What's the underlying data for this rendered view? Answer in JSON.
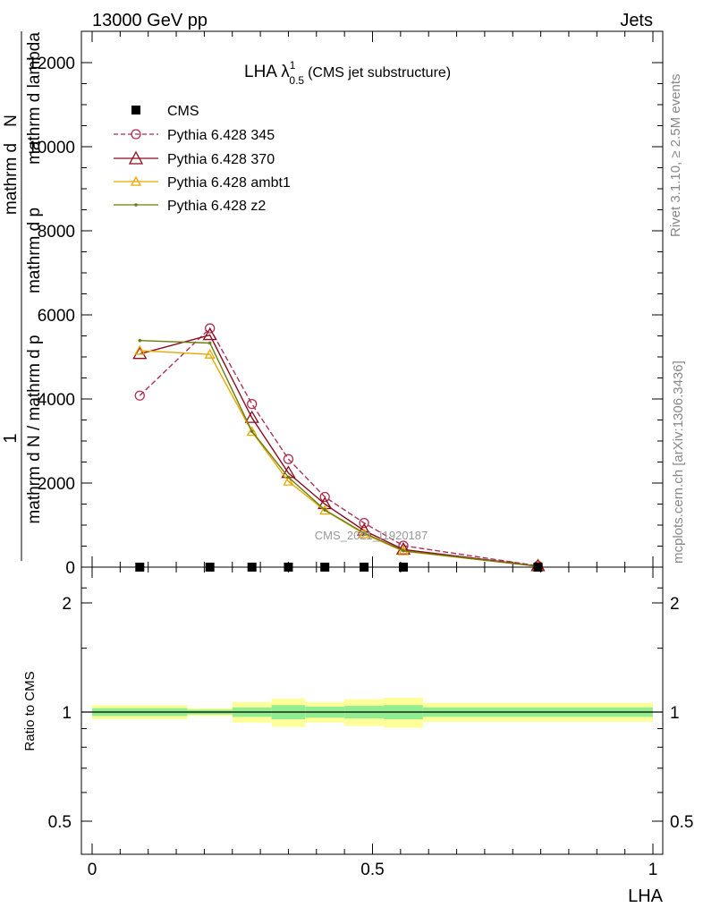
{
  "header": {
    "left": "13000 GeV pp",
    "right": "Jets"
  },
  "title": {
    "main": "LHA λ",
    "superscript": "1",
    "subscript": "0.5",
    "suffix": "(CMS jet substructure)"
  },
  "side_labels": {
    "rivet": "Rivet 3.1.10, ≥ 2.5M events",
    "mcplots": "mcplots.cern.ch [arXiv:1306.3436]"
  },
  "watermark": "CMS_2021_I1920187",
  "main_ylabel": {
    "prefix": "1",
    "numerator": "mathrm d",
    "numerator_var": "N",
    "denom_top": "mathrm d p",
    "denom_top_sub": "T",
    "denom_top_rest": " mathrm d lambda",
    "denominator": "mathrm d N / mathrm d p",
    "denominator_rest": "mathrm d p",
    "denom_sub": "T",
    "line1": "mathrm d N / mathrm d p",
    "line2": "mathrm d p",
    "line3": "mathrm d lambda"
  },
  "ratio_ylabel": "Ratio to CMS",
  "xlabel": "LHA",
  "legend": {
    "cms": "CMS",
    "s345": "Pythia 6.428 345",
    "s370": "Pythia 6.428 370",
    "ambt1": "Pythia 6.428 ambt1",
    "z2": "Pythia 6.428 z2"
  },
  "colors": {
    "cms": "#000000",
    "s345": "#b03050",
    "s370": "#8b0a1e",
    "ambt1": "#e8a800",
    "z2": "#6b7d10",
    "band_inner": "#90ee90",
    "band_outer": "#ffff99"
  },
  "chart_data": {
    "type": "line",
    "xlim": [
      0,
      1
    ],
    "main_ylim": [
      0,
      12000
    ],
    "ratio_ylim": [
      0.4,
      2.3
    ],
    "main_yticks": [
      {
        "v": 0,
        "label": "0"
      },
      {
        "v": 2000,
        "label": "2000"
      },
      {
        "v": 4000,
        "label": "4000"
      },
      {
        "v": 6000,
        "label": "6000"
      },
      {
        "v": 8000,
        "label": "8000"
      },
      {
        "v": 10000,
        "label": "10000"
      },
      {
        "v": 12000,
        "label": "12000"
      }
    ],
    "ratio_yticks": [
      {
        "v": 0.5,
        "label": "0.5"
      },
      {
        "v": 1,
        "label": "1"
      },
      {
        "v": 2,
        "label": "2"
      }
    ],
    "xticks": [
      {
        "v": 0,
        "label": "0"
      },
      {
        "v": 0.5,
        "label": "0.5"
      },
      {
        "v": 1,
        "label": "1"
      }
    ],
    "bin_edges": [
      0,
      0.17,
      0.25,
      0.32,
      0.38,
      0.45,
      0.52,
      0.59,
      1.0
    ],
    "cms": {
      "x": [
        0.085,
        0.21,
        0.285,
        0.35,
        0.415,
        0.485,
        0.555,
        0.795
      ],
      "y": [
        0,
        0,
        0,
        0,
        0,
        0,
        0,
        0
      ]
    },
    "series": [
      {
        "name": "Pythia 6.428 345",
        "key": "s345",
        "x": [
          0.085,
          0.21,
          0.285,
          0.35,
          0.415,
          0.485,
          0.555,
          0.795
        ],
        "y": [
          4080,
          5680,
          3880,
          2570,
          1670,
          1050,
          510,
          30
        ],
        "dash": true,
        "marker": "circle"
      },
      {
        "name": "Pythia 6.428 370",
        "key": "s370",
        "x": [
          0.085,
          0.21,
          0.285,
          0.35,
          0.415,
          0.485,
          0.555,
          0.795
        ],
        "y": [
          5070,
          5520,
          3550,
          2240,
          1500,
          870,
          420,
          25
        ],
        "dash": false,
        "marker": "triangle"
      },
      {
        "name": "Pythia 6.428 ambt1",
        "key": "ambt1",
        "x": [
          0.085,
          0.21,
          0.285,
          0.35,
          0.415,
          0.485,
          0.555,
          0.795
        ],
        "y": [
          5150,
          5060,
          3220,
          2040,
          1350,
          790,
          380,
          20
        ],
        "dash": false,
        "marker": "triangle-small"
      },
      {
        "name": "Pythia 6.428 z2",
        "key": "z2",
        "x": [
          0.085,
          0.21,
          0.285,
          0.35,
          0.415,
          0.485,
          0.555,
          0.795
        ],
        "y": [
          5390,
          5330,
          3230,
          2140,
          1360,
          810,
          390,
          20
        ],
        "dash": false,
        "marker": "dot"
      }
    ],
    "ratio_bands": [
      {
        "x0": 0.0,
        "x1": 0.17,
        "inner": [
          0.975,
          1.025
        ],
        "outer": [
          0.955,
          1.045
        ]
      },
      {
        "x0": 0.17,
        "x1": 0.25,
        "inner": [
          0.985,
          1.015
        ],
        "outer": [
          0.975,
          1.025
        ]
      },
      {
        "x0": 0.25,
        "x1": 0.32,
        "inner": [
          0.97,
          1.03
        ],
        "outer": [
          0.935,
          1.065
        ]
      },
      {
        "x0": 0.32,
        "x1": 0.38,
        "inner": [
          0.955,
          1.045
        ],
        "outer": [
          0.91,
          1.09
        ]
      },
      {
        "x0": 0.38,
        "x1": 0.45,
        "inner": [
          0.965,
          1.035
        ],
        "outer": [
          0.935,
          1.065
        ]
      },
      {
        "x0": 0.45,
        "x1": 0.52,
        "inner": [
          0.96,
          1.04
        ],
        "outer": [
          0.915,
          1.085
        ]
      },
      {
        "x0": 0.52,
        "x1": 0.59,
        "inner": [
          0.955,
          1.045
        ],
        "outer": [
          0.905,
          1.095
        ]
      },
      {
        "x0": 0.59,
        "x1": 1.0,
        "inner": [
          0.97,
          1.03
        ],
        "outer": [
          0.94,
          1.06
        ]
      }
    ]
  }
}
